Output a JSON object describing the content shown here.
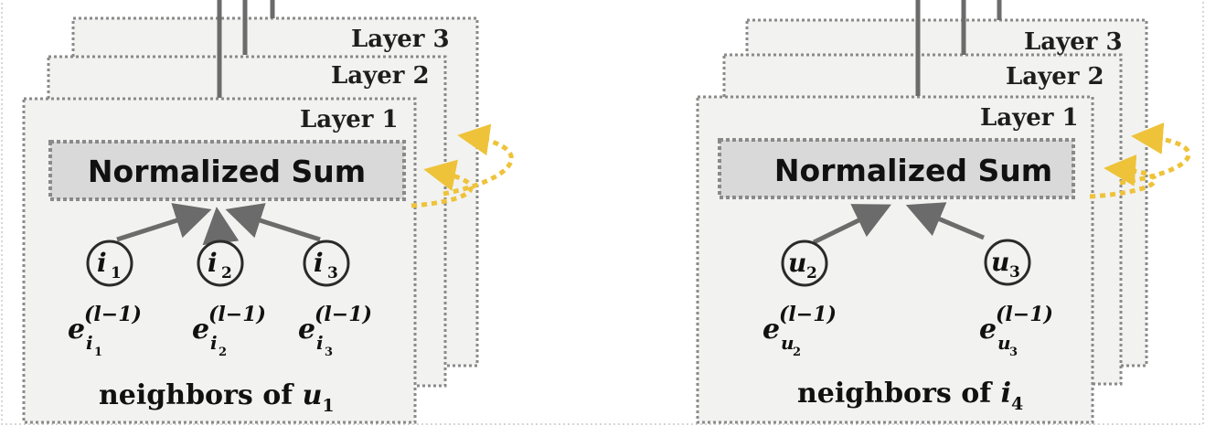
{
  "layer_labels": [
    "Layer 1",
    "Layer 2",
    "Layer 3"
  ],
  "sum_label": "Normalized Sum",
  "panels": [
    {
      "nodes": [
        {
          "letter": "i",
          "sub": "1"
        },
        {
          "letter": "i",
          "sub": "2"
        },
        {
          "letter": "i",
          "sub": "3"
        }
      ],
      "embeddings": [
        {
          "base": "e",
          "sup": "(l−1)",
          "sub": "i",
          "subsub": "1"
        },
        {
          "base": "e",
          "sup": "(l−1)",
          "sub": "i",
          "subsub": "2"
        },
        {
          "base": "e",
          "sup": "(l−1)",
          "sub": "i",
          "subsub": "3"
        }
      ],
      "caption": {
        "text": "neighbors of ",
        "var": "u",
        "sub": "1"
      }
    },
    {
      "nodes": [
        {
          "letter": "u",
          "sub": "2"
        },
        {
          "letter": "u",
          "sub": "3"
        }
      ],
      "embeddings": [
        {
          "base": "e",
          "sup": "(l−1)",
          "sub": "u",
          "subsub": "2"
        },
        {
          "base": "e",
          "sup": "(l−1)",
          "sub": "u",
          "subsub": "3"
        }
      ],
      "caption": {
        "text": "neighbors of ",
        "var": "i",
        "sub": "4"
      }
    }
  ],
  "colors": {
    "panel_fill": "#f2f2f0",
    "border": "#8a8a8a",
    "sum_fill": "#d9d9d9",
    "arrow": "#6b6b6b",
    "loop_arrow": "#eec33a"
  }
}
